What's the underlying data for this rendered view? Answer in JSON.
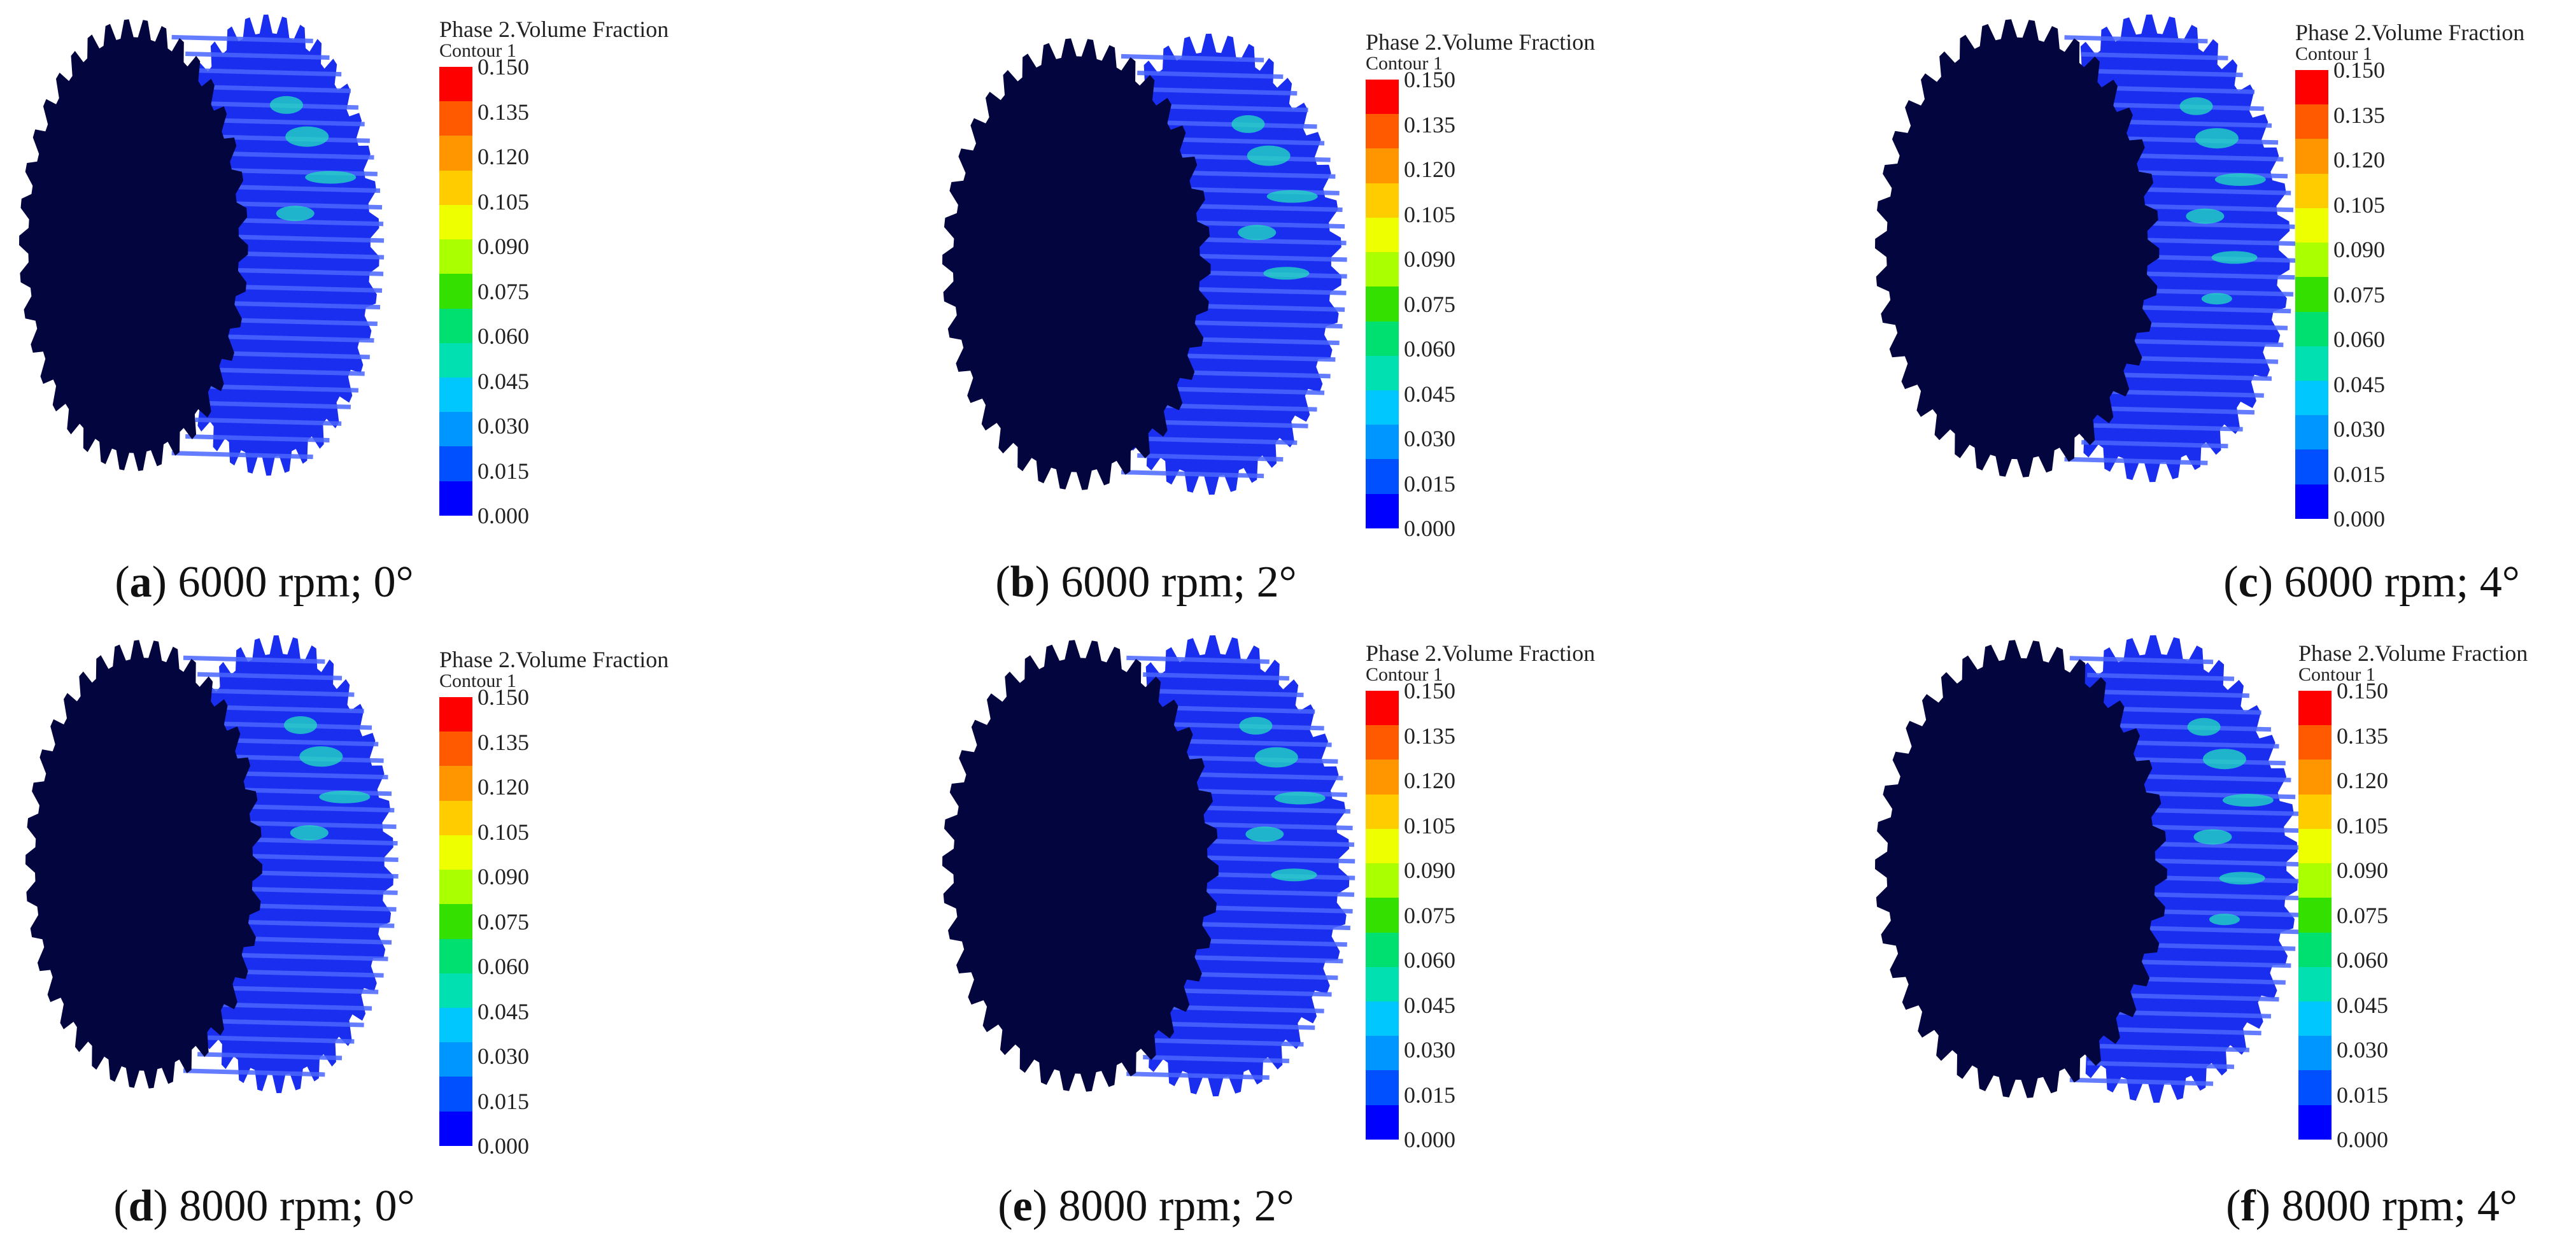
{
  "legend": {
    "title": "Phase 2.Volume Fraction",
    "subtitle": "Contour 1",
    "ticks": [
      "0.150",
      "0.135",
      "0.120",
      "0.105",
      "0.090",
      "0.075",
      "0.060",
      "0.045",
      "0.030",
      "0.015",
      "0.000"
    ],
    "colors": [
      "#ff0000",
      "#ff5a00",
      "#ff9600",
      "#ffcc00",
      "#eeff00",
      "#aaff00",
      "#33e000",
      "#00e070",
      "#00e0b0",
      "#00c8ff",
      "#0096ff",
      "#0050ff",
      "#0000ff"
    ]
  },
  "gear_colors": {
    "face": "#03053f",
    "teeth": "#1a2ef0",
    "tooth_highlight": "#4a66ff",
    "oil": "#22e0c0"
  },
  "panels": [
    {
      "letter": "a",
      "caption": "6000 rpm; 0°"
    },
    {
      "letter": "b",
      "caption": "6000 rpm; 2°"
    },
    {
      "letter": "c",
      "caption": "6000 rpm; 4°"
    },
    {
      "letter": "d",
      "caption": "8000 rpm; 0°"
    },
    {
      "letter": "e",
      "caption": "8000 rpm; 2°"
    },
    {
      "letter": "f",
      "caption": "8000 rpm; 4°"
    }
  ]
}
